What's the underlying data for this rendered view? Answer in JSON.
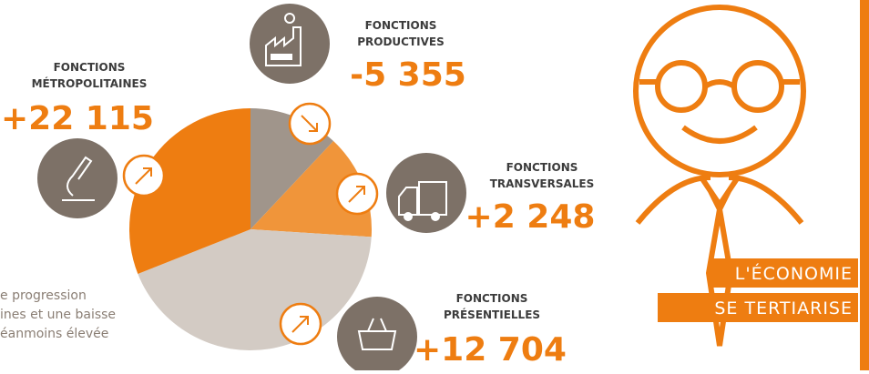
{
  "pie": {
    "type": "pie",
    "values": [
      12,
      14,
      43,
      31
    ],
    "colors": [
      "#a0958b",
      "#f0953a",
      "#d3cbc4",
      "#ee7d11"
    ]
  },
  "productives": {
    "line1": "FONCTIONS",
    "line2": "PRODUCTIVES",
    "value": "-5 355"
  },
  "metropolitaines": {
    "line1": "FONCTIONS",
    "line2": "MÉTROPOLITAINES",
    "value": "+22 115"
  },
  "transversales": {
    "line1": "FONCTIONS",
    "line2": "TRANSVERSALES",
    "value": "+2 248"
  },
  "presentielles": {
    "line1": "FONCTIONS",
    "line2": "PRÉSENTIELLES",
    "value": "+12 704"
  },
  "side_text": [
    "e progression",
    "ines et une baisse",
    "éanmoins élevée"
  ],
  "tag": {
    "line1": "L'ÉCONOMIE",
    "line2": "SE TERTIARISE"
  }
}
